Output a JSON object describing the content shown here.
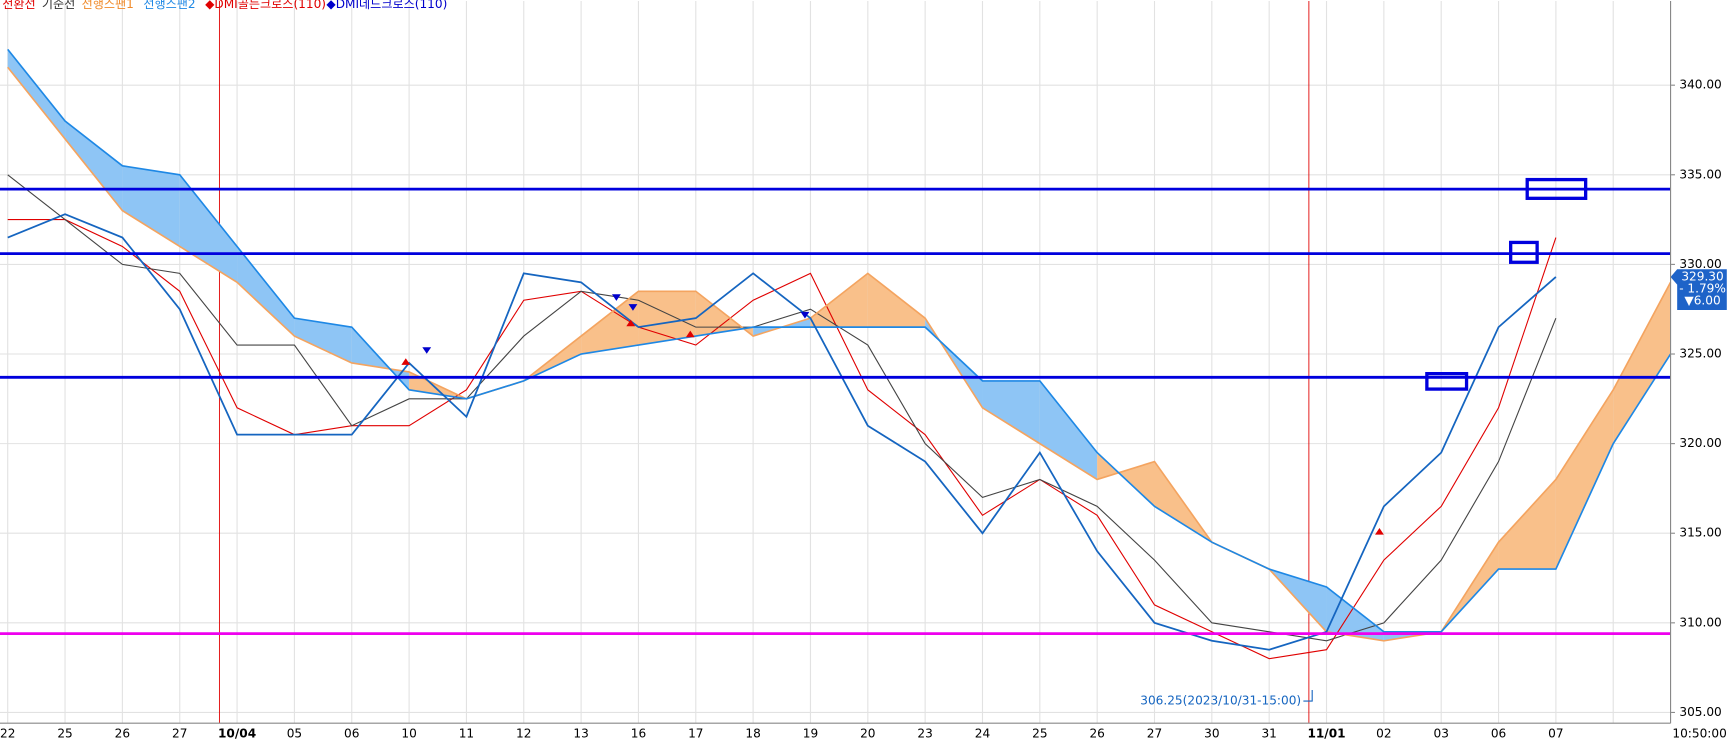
{
  "chart_data": {
    "type": "ichimoku",
    "legend": [
      {
        "text": "전환선",
        "color": "#e00000"
      },
      {
        "text": "기준선",
        "color": "#333333"
      },
      {
        "text": "선행스팬1",
        "color": "#f08a2a"
      },
      {
        "text": "선행스팬2",
        "color": "#1e88e5"
      },
      {
        "text": "◆DMI골든크로스(110)",
        "color": "#e00000"
      },
      {
        "text": "◆DMI데드크로스(110)",
        "color": "#0000cc"
      }
    ],
    "categories": [
      "22",
      "25",
      "26",
      "27",
      "10/04",
      "05",
      "06",
      "10",
      "11",
      "12",
      "13",
      "16",
      "17",
      "18",
      "19",
      "20",
      "23",
      "24",
      "25",
      "26",
      "27",
      "30",
      "31",
      "11/01",
      "02",
      "03",
      "06",
      "07",
      null,
      null
    ],
    "price": {
      "color": "#1565c0",
      "values": [
        331.5,
        332.8,
        331.5,
        327.5,
        320.5,
        320.5,
        320.5,
        324.5,
        321.5,
        329.5,
        329,
        326.5,
        327,
        329.5,
        327,
        321,
        319,
        315,
        319.5,
        314,
        310,
        309,
        308.5,
        309.5,
        316.5,
        319.5,
        326.5,
        329.3,
        null,
        null
      ]
    },
    "series": [
      {
        "name": "전환선",
        "color": "#e00000",
        "values": [
          332.5,
          332.5,
          331,
          328.5,
          322,
          320.5,
          321,
          321,
          323,
          328,
          328.5,
          326.5,
          325.5,
          328,
          329.5,
          323,
          320.5,
          316,
          318,
          316,
          311,
          309.5,
          308,
          308.5,
          313.5,
          316.5,
          322,
          331.5,
          null,
          null
        ]
      },
      {
        "name": "기준선",
        "color": "#444444",
        "values": [
          335,
          332.5,
          330,
          329.5,
          325.5,
          325.5,
          321,
          322.5,
          322.5,
          326,
          328.5,
          328,
          326.5,
          326.5,
          327.5,
          325.5,
          320,
          317,
          318,
          316.5,
          313.5,
          310,
          309.5,
          309,
          310,
          313.5,
          319,
          327,
          null,
          null
        ]
      },
      {
        "name": "선행스팬1",
        "color": "#f4a460",
        "fill": "#f9c08a",
        "values": [
          341,
          337,
          333,
          331,
          329,
          326,
          324.5,
          324,
          322.5,
          323.5,
          326,
          328.5,
          328.5,
          326,
          327,
          329.5,
          327,
          322,
          320,
          318,
          319,
          314.5,
          313,
          309.5,
          309,
          309.5,
          314.5,
          318,
          323,
          329
        ]
      },
      {
        "name": "선행스팬2",
        "color": "#1e88e5",
        "fill": "#8ec5f5",
        "values": [
          342,
          338,
          335.5,
          335,
          331,
          327,
          326.5,
          323,
          322.5,
          323.5,
          325,
          325.5,
          326,
          326.5,
          326.5,
          326.5,
          326.5,
          323.5,
          323.5,
          319.5,
          316.5,
          314.5,
          313,
          312,
          309.5,
          309.5,
          313,
          313,
          320,
          325
        ]
      }
    ],
    "hlines": [
      {
        "value": 334.2,
        "color": "#0000dd"
      },
      {
        "value": 330.6,
        "color": "#0000dd"
      },
      {
        "value": 323.7,
        "color": "#0000dd"
      },
      {
        "value": 309.4,
        "color": "#ee00ee"
      }
    ],
    "ylim": [
      304.4,
      344.7
    ],
    "yticks": [
      {
        "value": 305,
        "label": "305.00"
      },
      {
        "value": 310,
        "label": "310.00"
      },
      {
        "value": 315,
        "label": "315.00"
      },
      {
        "value": 320,
        "label": "320.00"
      },
      {
        "value": 325,
        "label": "325.00"
      },
      {
        "value": 330,
        "label": "330.00"
      },
      {
        "value": 335,
        "label": "335.00"
      },
      {
        "value": 340,
        "label": "340.00"
      }
    ],
    "grid": true,
    "session_lines": true,
    "low_annotation": {
      "value": 306.25,
      "label": "306.25(2023/10/31-15:00)"
    },
    "price_tag": {
      "value": 329.3,
      "label": "329.30",
      "change": "- 1.79%",
      "diff": "▼6.00"
    },
    "time": "10:50:00"
  }
}
